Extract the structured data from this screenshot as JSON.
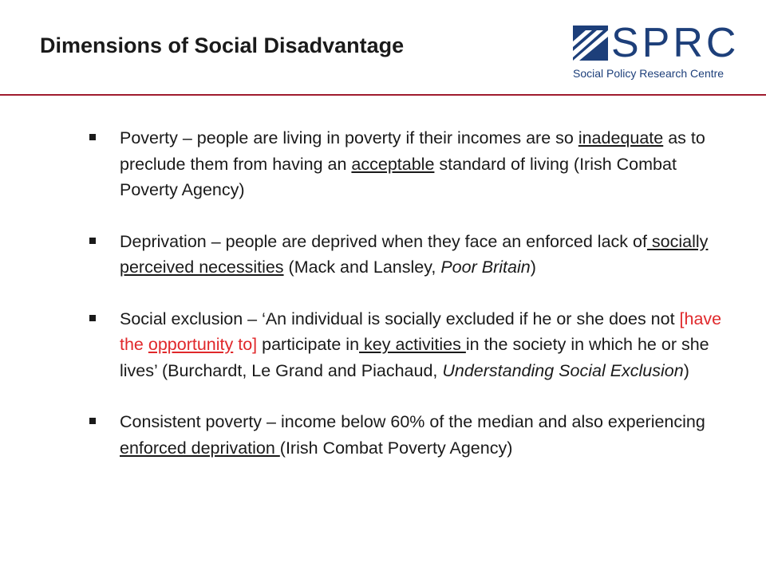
{
  "slide": {
    "title": "Dimensions of Social Disadvantage",
    "logo": {
      "word": "SPRC",
      "subtitle": "Social Policy Research Centre"
    },
    "bullets": [
      {
        "parts": [
          "Poverty – people are living in poverty if their incomes are so ",
          "inadequate",
          " as to preclude them from having an ",
          "acceptable",
          " standard of living (Irish Combat Poverty Agency)"
        ]
      },
      {
        "parts": [
          "Deprivation – people are deprived when they face an enforced lack of",
          " socially perceived necessities",
          " (Mack and Lansley, ",
          "Poor Britain",
          ")"
        ]
      },
      {
        "parts": [
          "Social exclusion – ‘An individual is socially excluded if he or she does not ",
          "[have the ",
          "opportunity",
          " to]",
          " participate in",
          " key activities ",
          "in the society in which he or she lives’ (Burchardt, Le Grand and Piachaud, ",
          "Understanding Social Exclusion",
          ")"
        ]
      },
      {
        "parts": [
          "Consistent poverty – income below 60% of the median and also experiencing ",
          "enforced deprivation ",
          "(Irish Combat Poverty Agency)"
        ]
      }
    ]
  },
  "colors": {
    "accent_rule": "#a01b2e",
    "logo_blue": "#1d3f7a",
    "highlight_red": "#e0282b"
  }
}
